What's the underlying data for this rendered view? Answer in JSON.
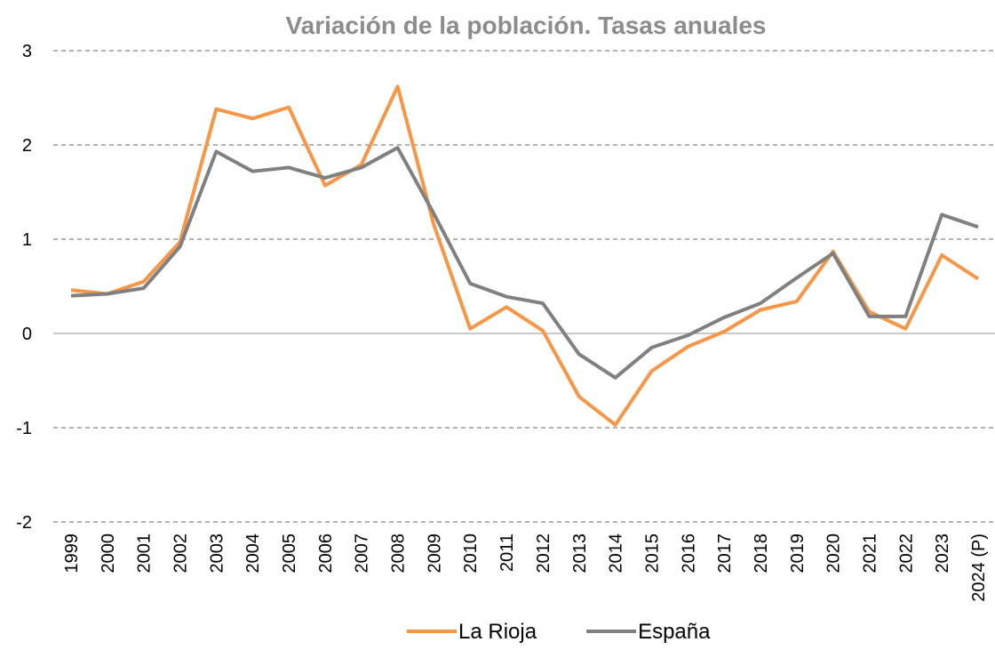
{
  "chart_data": {
    "type": "line",
    "title": "Variación de la población. Tasas anuales",
    "categories": [
      "1999",
      "2000",
      "2001",
      "2002",
      "2003",
      "2004",
      "2005",
      "2006",
      "2007",
      "2008",
      "2009",
      "2010",
      "2011",
      "2012",
      "2013",
      "2014",
      "2015",
      "2016",
      "2017",
      "2018",
      "2019",
      "2020",
      "2021",
      "2022",
      "2023",
      "2024 (P)"
    ],
    "series": [
      {
        "name": "La Rioja",
        "color": "#f79646",
        "values": [
          0.46,
          0.42,
          0.55,
          0.97,
          2.38,
          2.28,
          2.4,
          1.57,
          1.79,
          2.62,
          1.15,
          0.05,
          0.28,
          0.03,
          -0.67,
          -0.97,
          -0.4,
          -0.14,
          0.02,
          0.25,
          0.34,
          0.87,
          0.23,
          0.05,
          0.83,
          0.58
        ]
      },
      {
        "name": "España",
        "color": "#808080",
        "values": [
          0.4,
          0.42,
          0.48,
          0.92,
          1.93,
          1.72,
          1.76,
          1.65,
          1.76,
          1.97,
          1.27,
          0.53,
          0.39,
          0.32,
          -0.22,
          -0.47,
          -0.15,
          -0.02,
          0.17,
          0.32,
          0.59,
          0.85,
          0.18,
          0.18,
          1.26,
          1.13
        ]
      }
    ],
    "ylim": [
      -2,
      3
    ],
    "yticks": [
      -2,
      -1,
      0,
      1,
      2,
      3
    ],
    "grid": true,
    "legend": "bottom"
  }
}
